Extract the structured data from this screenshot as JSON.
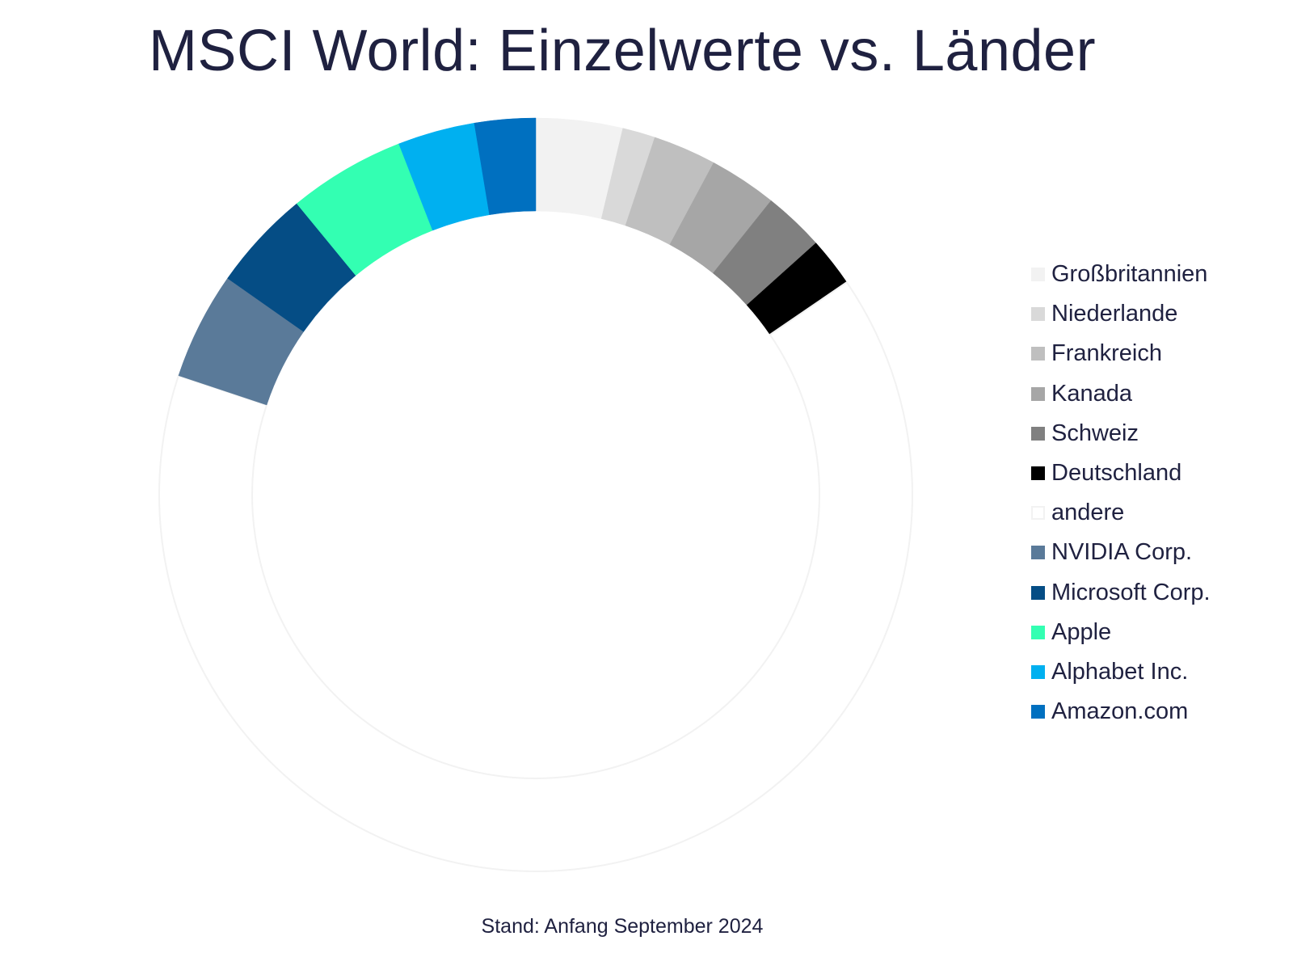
{
  "chart_data": {
    "type": "pie",
    "title": "MSCI World: Einzelwerte vs. Länder",
    "footnote": "Stand: Anfang September 2024",
    "legend_position": "right",
    "start_angle_deg": 0,
    "series": [
      {
        "name": "Großbritannien",
        "value": 3.7,
        "color": "#f2f2f2"
      },
      {
        "name": "Niederlande",
        "value": 1.4,
        "color": "#d9d9d9"
      },
      {
        "name": "Frankreich",
        "value": 2.7,
        "color": "#bfbfbf"
      },
      {
        "name": "Kanada",
        "value": 2.9,
        "color": "#a6a6a6"
      },
      {
        "name": "Schweiz",
        "value": 2.6,
        "color": "#808080"
      },
      {
        "name": "Deutschland",
        "value": 2.1,
        "color": "#000000"
      },
      {
        "name": "andere",
        "value": 64.4,
        "color": "#ffffff",
        "stroke": "#f2f2f2"
      },
      {
        "name": "NVIDIA Corp.",
        "value": 4.6,
        "color": "#5a7a99"
      },
      {
        "name": "Microsoft Corp.",
        "value": 4.3,
        "color": "#054d85"
      },
      {
        "name": "Apple",
        "value": 5.0,
        "color": "#33ffb2"
      },
      {
        "name": "Alphabet Inc.",
        "value": 3.3,
        "color": "#00b0f0"
      },
      {
        "name": "Amazon.com",
        "value": 2.6,
        "color": "#0070c0"
      }
    ]
  }
}
